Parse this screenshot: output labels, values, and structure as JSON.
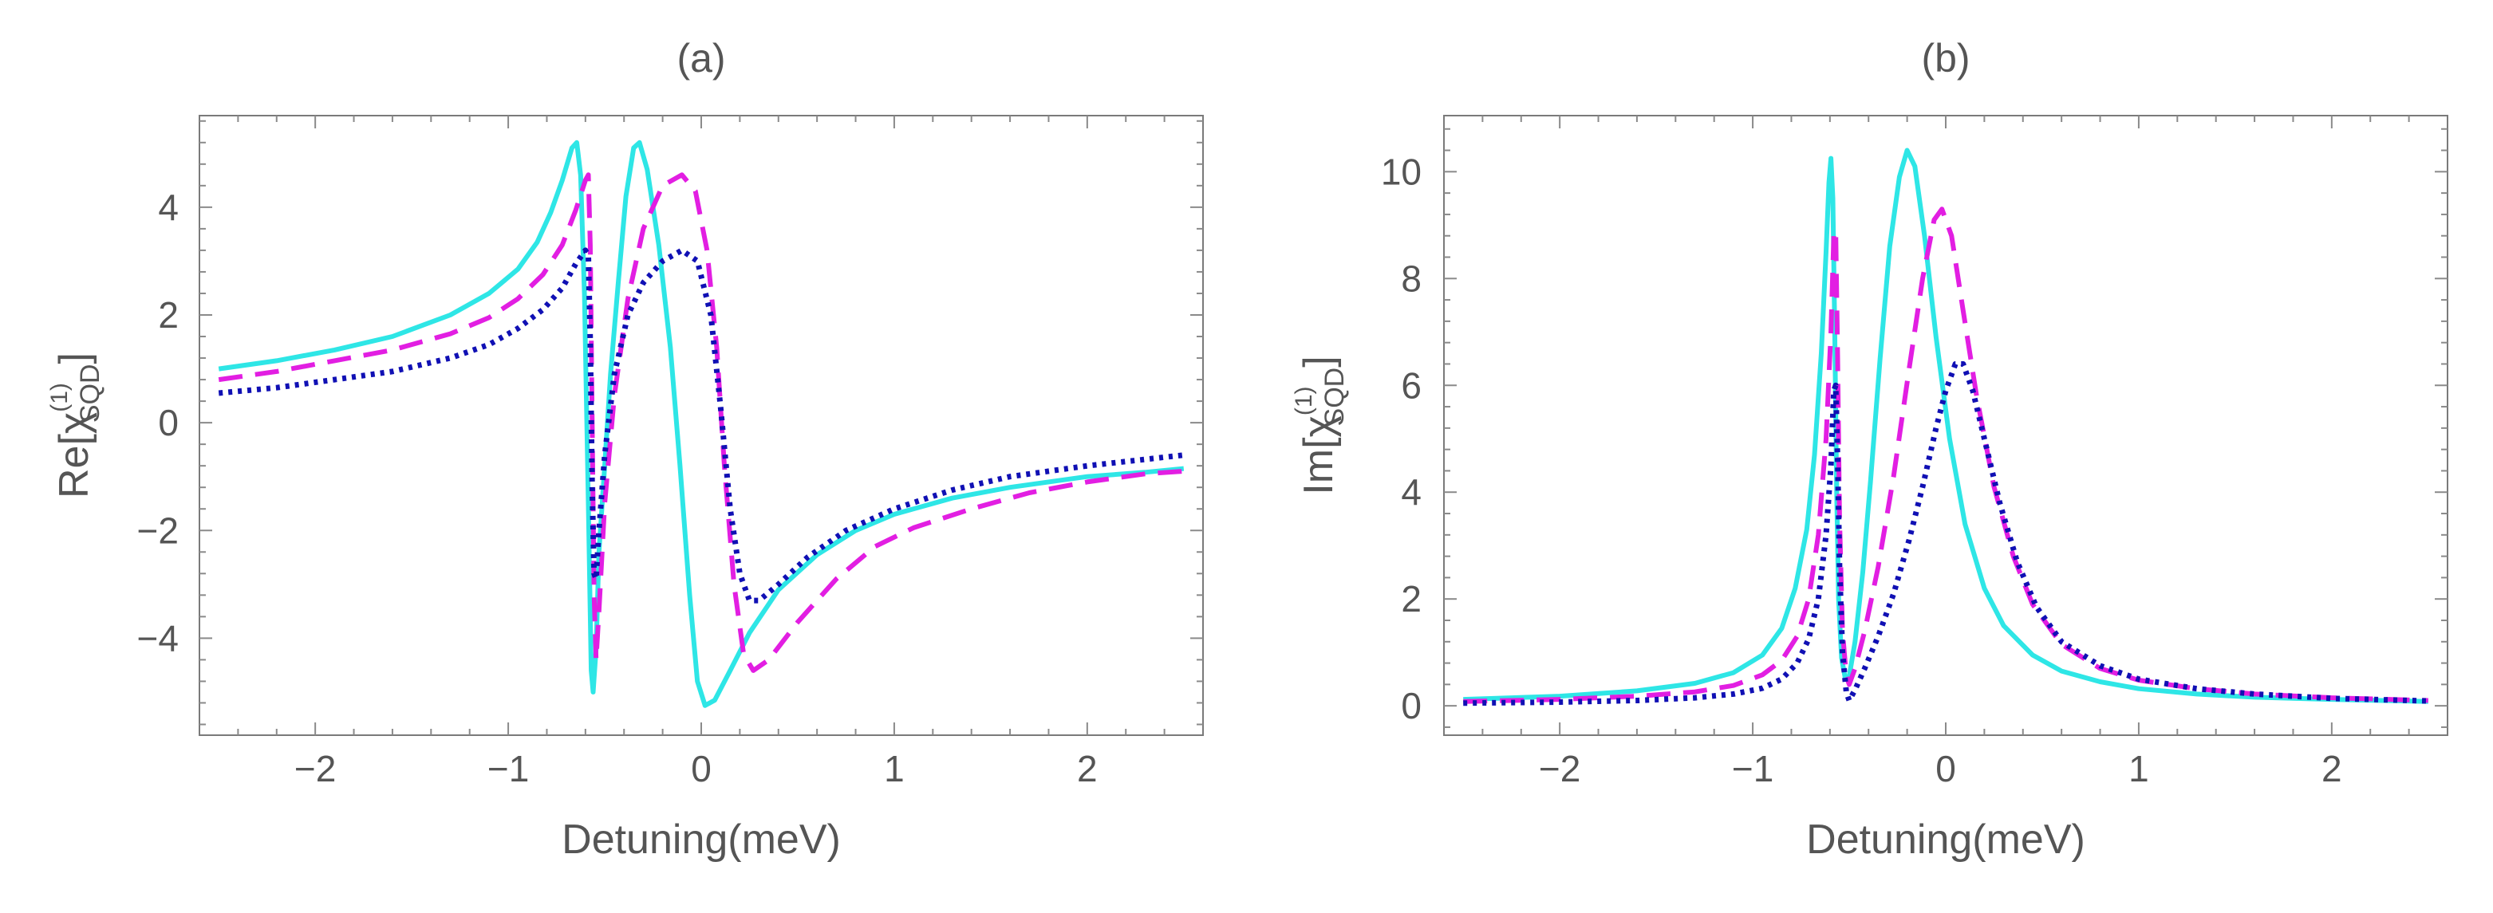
{
  "chart_data": [
    {
      "id": "a",
      "type": "line",
      "title": "(a)",
      "xlabel": "Detuning(meV)",
      "ylabel": {
        "base": "Re[χ",
        "superscript": "(1)",
        "subscript": "SQD",
        "close": "]"
      },
      "xlim": [
        -2.6,
        2.6
      ],
      "ylim": [
        -5.8,
        5.7
      ],
      "xticks": [
        -2,
        -1,
        0,
        1,
        2
      ],
      "xticklabels": [
        "−2",
        "−1",
        "0",
        "1",
        "2"
      ],
      "yticks": [
        -4,
        -2,
        0,
        2,
        4
      ],
      "yticklabels": [
        "−4",
        "−2",
        "0",
        "2",
        "4"
      ],
      "series": [
        {
          "name": "cyan-solid",
          "color": "#2ee6e6",
          "style": "solid",
          "points": [
            [
              -2.5,
              1.0
            ],
            [
              -2.2,
              1.15
            ],
            [
              -1.9,
              1.35
            ],
            [
              -1.6,
              1.6
            ],
            [
              -1.3,
              2.0
            ],
            [
              -1.1,
              2.4
            ],
            [
              -0.95,
              2.85
            ],
            [
              -0.85,
              3.35
            ],
            [
              -0.78,
              3.9
            ],
            [
              -0.72,
              4.5
            ],
            [
              -0.67,
              5.1
            ],
            [
              -0.645,
              5.2
            ],
            [
              -0.625,
              4.6
            ],
            [
              -0.605,
              2.4
            ],
            [
              -0.585,
              -1.5
            ],
            [
              -0.57,
              -4.6
            ],
            [
              -0.56,
              -5.0
            ],
            [
              -0.545,
              -4.2
            ],
            [
              -0.53,
              -2.4
            ],
            [
              -0.5,
              -0.8
            ],
            [
              -0.47,
              0.9
            ],
            [
              -0.43,
              2.6
            ],
            [
              -0.39,
              4.2
            ],
            [
              -0.35,
              5.1
            ],
            [
              -0.32,
              5.2
            ],
            [
              -0.28,
              4.7
            ],
            [
              -0.22,
              3.3
            ],
            [
              -0.16,
              1.4
            ],
            [
              -0.11,
              -0.8
            ],
            [
              -0.06,
              -3.2
            ],
            [
              -0.02,
              -4.8
            ],
            [
              0.02,
              -5.25
            ],
            [
              0.07,
              -5.15
            ],
            [
              0.15,
              -4.6
            ],
            [
              0.25,
              -3.9
            ],
            [
              0.4,
              -3.1
            ],
            [
              0.6,
              -2.45
            ],
            [
              0.8,
              -2.0
            ],
            [
              1.0,
              -1.7
            ],
            [
              1.3,
              -1.4
            ],
            [
              1.6,
              -1.2
            ],
            [
              2.0,
              -1.0
            ],
            [
              2.3,
              -0.92
            ],
            [
              2.5,
              -0.85
            ]
          ]
        },
        {
          "name": "magenta-dashed",
          "color": "#e21ee2",
          "style": "dashed",
          "points": [
            [
              -2.5,
              0.8
            ],
            [
              -2.2,
              0.95
            ],
            [
              -1.9,
              1.15
            ],
            [
              -1.6,
              1.35
            ],
            [
              -1.3,
              1.65
            ],
            [
              -1.1,
              1.95
            ],
            [
              -0.95,
              2.3
            ],
            [
              -0.82,
              2.75
            ],
            [
              -0.72,
              3.3
            ],
            [
              -0.65,
              3.95
            ],
            [
              -0.6,
              4.5
            ],
            [
              -0.585,
              4.6
            ],
            [
              -0.575,
              3.3
            ],
            [
              -0.565,
              0.0
            ],
            [
              -0.555,
              -3.2
            ],
            [
              -0.545,
              -4.4
            ],
            [
              -0.53,
              -3.5
            ],
            [
              -0.5,
              -1.5
            ],
            [
              -0.45,
              0.5
            ],
            [
              -0.38,
              2.3
            ],
            [
              -0.3,
              3.6
            ],
            [
              -0.2,
              4.4
            ],
            [
              -0.1,
              4.6
            ],
            [
              -0.03,
              4.3
            ],
            [
              0.03,
              3.2
            ],
            [
              0.08,
              1.4
            ],
            [
              0.12,
              -0.8
            ],
            [
              0.17,
              -3.0
            ],
            [
              0.22,
              -4.3
            ],
            [
              0.27,
              -4.6
            ],
            [
              0.35,
              -4.4
            ],
            [
              0.5,
              -3.7
            ],
            [
              0.7,
              -2.9
            ],
            [
              0.9,
              -2.3
            ],
            [
              1.1,
              -1.95
            ],
            [
              1.4,
              -1.6
            ],
            [
              1.7,
              -1.3
            ],
            [
              2.0,
              -1.1
            ],
            [
              2.3,
              -0.95
            ],
            [
              2.5,
              -0.9
            ]
          ]
        },
        {
          "name": "blue-dotted",
          "color": "#1010b4",
          "style": "dotted",
          "points": [
            [
              -2.5,
              0.55
            ],
            [
              -2.2,
              0.65
            ],
            [
              -1.9,
              0.8
            ],
            [
              -1.6,
              0.95
            ],
            [
              -1.3,
              1.2
            ],
            [
              -1.1,
              1.45
            ],
            [
              -0.95,
              1.75
            ],
            [
              -0.82,
              2.1
            ],
            [
              -0.72,
              2.5
            ],
            [
              -0.65,
              2.95
            ],
            [
              -0.6,
              3.2
            ],
            [
              -0.585,
              3.1
            ],
            [
              -0.575,
              1.5
            ],
            [
              -0.565,
              -1.2
            ],
            [
              -0.555,
              -2.8
            ],
            [
              -0.545,
              -2.9
            ],
            [
              -0.53,
              -2.0
            ],
            [
              -0.5,
              -0.6
            ],
            [
              -0.45,
              0.9
            ],
            [
              -0.38,
              2.0
            ],
            [
              -0.3,
              2.6
            ],
            [
              -0.2,
              3.0
            ],
            [
              -0.1,
              3.2
            ],
            [
              -0.02,
              3.0
            ],
            [
              0.05,
              2.0
            ],
            [
              0.1,
              0.3
            ],
            [
              0.15,
              -1.6
            ],
            [
              0.2,
              -2.8
            ],
            [
              0.25,
              -3.3
            ],
            [
              0.3,
              -3.3
            ],
            [
              0.4,
              -3.0
            ],
            [
              0.55,
              -2.5
            ],
            [
              0.75,
              -2.0
            ],
            [
              1.0,
              -1.6
            ],
            [
              1.3,
              -1.25
            ],
            [
              1.6,
              -1.0
            ],
            [
              2.0,
              -0.8
            ],
            [
              2.3,
              -0.68
            ],
            [
              2.5,
              -0.6
            ]
          ]
        }
      ]
    },
    {
      "id": "b",
      "type": "line",
      "title": "(b)",
      "xlabel": "Detuning(meV)",
      "ylabel": {
        "base": "Im[χ",
        "superscript": "(1)",
        "subscript": "SQD",
        "close": "]"
      },
      "xlim": [
        -2.6,
        2.6
      ],
      "ylim": [
        -0.55,
        11.05
      ],
      "xticks": [
        -2,
        -1,
        0,
        1,
        2
      ],
      "xticklabels": [
        "−2",
        "−1",
        "0",
        "1",
        "2"
      ],
      "yticks": [
        0,
        2,
        4,
        6,
        8,
        10
      ],
      "yticklabels": [
        "0",
        "2",
        "4",
        "6",
        "8",
        "10"
      ],
      "series": [
        {
          "name": "cyan-solid",
          "color": "#2ee6e6",
          "style": "solid",
          "points": [
            [
              -2.5,
              0.12
            ],
            [
              -2.0,
              0.18
            ],
            [
              -1.6,
              0.28
            ],
            [
              -1.3,
              0.42
            ],
            [
              -1.1,
              0.62
            ],
            [
              -0.95,
              0.95
            ],
            [
              -0.85,
              1.45
            ],
            [
              -0.78,
              2.2
            ],
            [
              -0.72,
              3.3
            ],
            [
              -0.68,
              4.7
            ],
            [
              -0.645,
              6.6
            ],
            [
              -0.62,
              8.5
            ],
            [
              -0.605,
              9.8
            ],
            [
              -0.595,
              10.25
            ],
            [
              -0.585,
              9.5
            ],
            [
              -0.575,
              7.0
            ],
            [
              -0.565,
              4.0
            ],
            [
              -0.555,
              2.0
            ],
            [
              -0.54,
              0.9
            ],
            [
              -0.52,
              0.5
            ],
            [
              -0.5,
              0.55
            ],
            [
              -0.47,
              1.2
            ],
            [
              -0.43,
              2.5
            ],
            [
              -0.39,
              4.2
            ],
            [
              -0.34,
              6.5
            ],
            [
              -0.29,
              8.6
            ],
            [
              -0.24,
              9.9
            ],
            [
              -0.2,
              10.4
            ],
            [
              -0.16,
              10.1
            ],
            [
              -0.11,
              8.8
            ],
            [
              -0.05,
              6.9
            ],
            [
              0.02,
              5.0
            ],
            [
              0.1,
              3.4
            ],
            [
              0.2,
              2.2
            ],
            [
              0.3,
              1.5
            ],
            [
              0.45,
              0.95
            ],
            [
              0.6,
              0.65
            ],
            [
              0.8,
              0.45
            ],
            [
              1.0,
              0.32
            ],
            [
              1.3,
              0.22
            ],
            [
              1.6,
              0.16
            ],
            [
              2.0,
              0.12
            ],
            [
              2.5,
              0.08
            ]
          ]
        },
        {
          "name": "magenta-dashed",
          "color": "#e21ee2",
          "style": "dashed",
          "points": [
            [
              -2.5,
              0.08
            ],
            [
              -2.0,
              0.12
            ],
            [
              -1.6,
              0.18
            ],
            [
              -1.3,
              0.26
            ],
            [
              -1.1,
              0.38
            ],
            [
              -0.95,
              0.58
            ],
            [
              -0.85,
              0.85
            ],
            [
              -0.77,
              1.3
            ],
            [
              -0.71,
              2.0
            ],
            [
              -0.66,
              3.2
            ],
            [
              -0.62,
              5.0
            ],
            [
              -0.595,
              7.0
            ],
            [
              -0.58,
              8.8
            ],
            [
              -0.57,
              8.9
            ],
            [
              -0.56,
              6.5
            ],
            [
              -0.55,
              3.5
            ],
            [
              -0.535,
              1.4
            ],
            [
              -0.515,
              0.55
            ],
            [
              -0.5,
              0.4
            ],
            [
              -0.47,
              0.7
            ],
            [
              -0.42,
              1.4
            ],
            [
              -0.35,
              2.6
            ],
            [
              -0.27,
              4.3
            ],
            [
              -0.19,
              6.3
            ],
            [
              -0.12,
              8.0
            ],
            [
              -0.06,
              9.1
            ],
            [
              -0.02,
              9.3
            ],
            [
              0.03,
              8.8
            ],
            [
              0.09,
              7.4
            ],
            [
              0.16,
              5.8
            ],
            [
              0.25,
              4.1
            ],
            [
              0.35,
              2.8
            ],
            [
              0.45,
              1.9
            ],
            [
              0.6,
              1.15
            ],
            [
              0.8,
              0.7
            ],
            [
              1.0,
              0.48
            ],
            [
              1.3,
              0.32
            ],
            [
              1.6,
              0.22
            ],
            [
              2.0,
              0.15
            ],
            [
              2.5,
              0.1
            ]
          ]
        },
        {
          "name": "blue-dotted",
          "color": "#1010b4",
          "style": "dotted",
          "points": [
            [
              -2.5,
              0.05
            ],
            [
              -2.0,
              0.07
            ],
            [
              -1.6,
              0.1
            ],
            [
              -1.3,
              0.15
            ],
            [
              -1.1,
              0.22
            ],
            [
              -0.95,
              0.33
            ],
            [
              -0.85,
              0.5
            ],
            [
              -0.77,
              0.8
            ],
            [
              -0.71,
              1.25
            ],
            [
              -0.66,
              2.0
            ],
            [
              -0.62,
              3.2
            ],
            [
              -0.595,
              4.5
            ],
            [
              -0.58,
              5.9
            ],
            [
              -0.57,
              6.0
            ],
            [
              -0.56,
              4.6
            ],
            [
              -0.55,
              2.6
            ],
            [
              -0.535,
              1.0
            ],
            [
              -0.515,
              0.25
            ],
            [
              -0.5,
              0.1
            ],
            [
              -0.47,
              0.3
            ],
            [
              -0.42,
              0.7
            ],
            [
              -0.35,
              1.3
            ],
            [
              -0.27,
              2.1
            ],
            [
              -0.19,
              3.1
            ],
            [
              -0.12,
              4.1
            ],
            [
              -0.05,
              5.2
            ],
            [
              0.0,
              5.9
            ],
            [
              0.05,
              6.4
            ],
            [
              0.09,
              6.4
            ],
            [
              0.14,
              5.9
            ],
            [
              0.2,
              5.0
            ],
            [
              0.28,
              3.8
            ],
            [
              0.37,
              2.7
            ],
            [
              0.47,
              1.85
            ],
            [
              0.6,
              1.2
            ],
            [
              0.8,
              0.75
            ],
            [
              1.0,
              0.5
            ],
            [
              1.3,
              0.32
            ],
            [
              1.6,
              0.22
            ],
            [
              2.0,
              0.14
            ],
            [
              2.5,
              0.09
            ]
          ]
        }
      ]
    }
  ]
}
